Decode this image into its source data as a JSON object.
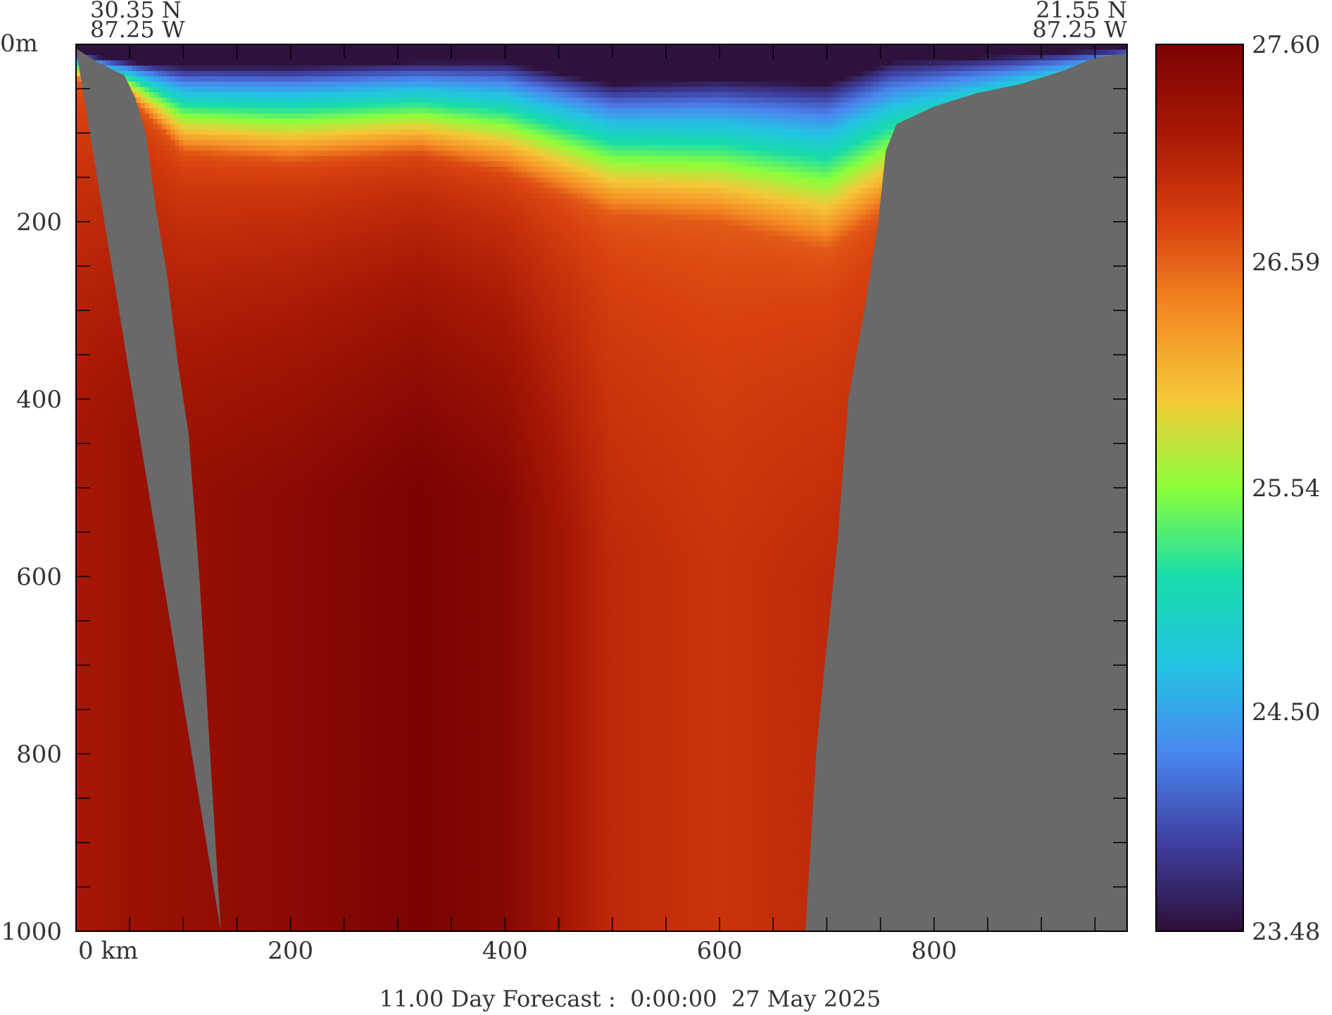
{
  "chart_data": {
    "type": "heatmap",
    "title": "11.00 Day Forecast :  0:00:00  27 May 2025",
    "corner_left": {
      "lat": "30.35 N",
      "lon": "87.25 W"
    },
    "corner_right": {
      "lat": "21.55 N",
      "lon": "87.25 W"
    },
    "x_axis": {
      "unit": "km",
      "range": [
        0,
        980
      ],
      "tick_labels": [
        "0 km",
        "200",
        "400",
        "600",
        "800"
      ],
      "tick_values": [
        0,
        200,
        400,
        600,
        800
      ],
      "minor_tick_values": [
        50,
        100,
        150,
        200,
        250,
        300,
        350,
        400,
        450,
        500,
        550,
        600,
        650,
        700,
        750,
        800,
        850,
        900,
        950
      ]
    },
    "y_axis": {
      "unit": "m",
      "range": [
        0,
        1000
      ],
      "inverted": true,
      "tick_labels": [
        "0m",
        "200",
        "400",
        "600",
        "800",
        "1000"
      ],
      "tick_values": [
        0,
        200,
        400,
        600,
        800,
        1000
      ],
      "minor_tick_values": [
        50,
        100,
        150,
        200,
        250,
        300,
        350,
        400,
        450,
        500,
        550,
        600,
        650,
        700,
        750,
        800,
        850,
        900,
        950
      ]
    },
    "colorbar": {
      "min": 23.48,
      "max": 27.6,
      "tick_labels": [
        "27.60",
        "26.59",
        "25.54",
        "24.50",
        "23.48"
      ],
      "tick_values": [
        27.6,
        26.59,
        25.54,
        24.5,
        23.48
      ]
    },
    "colors": {
      "land": "#696969",
      "axis": "#000000",
      "scale": [
        "#2d1038",
        "#3f3fa0",
        "#4a86f0",
        "#23c3e3",
        "#18dcaa",
        "#8cff3a",
        "#f5c838",
        "#f58a24",
        "#d8400f",
        "#a81805",
        "#7a0303"
      ]
    },
    "bathymetry": {
      "left_slope": [
        [
          0,
          5
        ],
        [
          20,
          20
        ],
        [
          45,
          35
        ],
        [
          55,
          60
        ],
        [
          65,
          100
        ],
        [
          75,
          190
        ],
        [
          85,
          260
        ],
        [
          95,
          360
        ],
        [
          105,
          440
        ],
        [
          115,
          600
        ],
        [
          120,
          700
        ],
        [
          125,
          800
        ],
        [
          130,
          900
        ],
        [
          135,
          1000
        ]
      ],
      "right_slope": [
        [
          680,
          1000
        ],
        [
          690,
          800
        ],
        [
          698,
          700
        ],
        [
          710,
          560
        ],
        [
          720,
          400
        ],
        [
          735,
          300
        ],
        [
          748,
          200
        ],
        [
          755,
          120
        ],
        [
          765,
          90
        ],
        [
          800,
          70
        ],
        [
          840,
          55
        ],
        [
          880,
          45
        ],
        [
          920,
          30
        ],
        [
          950,
          15
        ],
        [
          980,
          10
        ]
      ]
    },
    "temperature_field": {
      "x_km": [
        0,
        50,
        100,
        200,
        320,
        400,
        500,
        600,
        700,
        760,
        980
      ],
      "mixed_layer_base_m": [
        10,
        20,
        25,
        25,
        20,
        20,
        45,
        40,
        45,
        20,
        5
      ],
      "thermocline_depth_m": [
        40,
        60,
        120,
        130,
        120,
        140,
        190,
        200,
        230,
        180,
        40
      ],
      "deep_core_temp": [
        27.2,
        27.3,
        27.35,
        27.45,
        27.6,
        27.5,
        27.0,
        26.9,
        27.0,
        27.1,
        27.2
      ]
    }
  }
}
